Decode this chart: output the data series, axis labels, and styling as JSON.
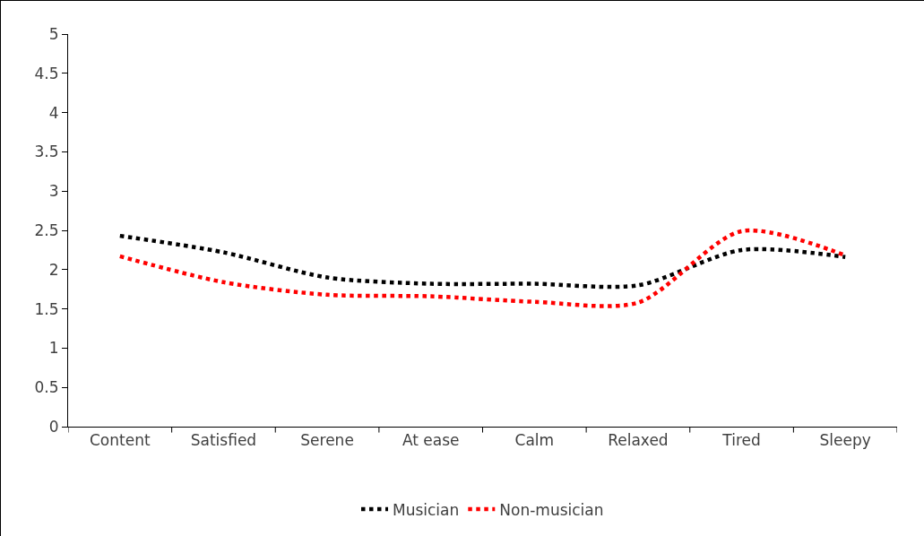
{
  "chart_data": {
    "type": "line",
    "categories": [
      "Content",
      "Satisfied",
      "Serene",
      "At ease",
      "Calm",
      "Relaxed",
      "Tired",
      "Sleepy"
    ],
    "series": [
      {
        "name": "Musician",
        "color": "#000000",
        "values": [
          2.43,
          2.22,
          1.9,
          1.82,
          1.82,
          1.8,
          2.25,
          2.16
        ]
      },
      {
        "name": "Non-musician",
        "color": "#ff0000",
        "values": [
          2.17,
          1.84,
          1.68,
          1.66,
          1.59,
          1.58,
          2.49,
          2.18
        ]
      }
    ],
    "ylim": [
      0,
      5
    ],
    "yticks": [
      0,
      0.5,
      1,
      1.5,
      2,
      2.5,
      3,
      3.5,
      4,
      4.5,
      5
    ],
    "grid": false,
    "legend": "bottom",
    "line_style": "dotted",
    "marker": "none"
  }
}
